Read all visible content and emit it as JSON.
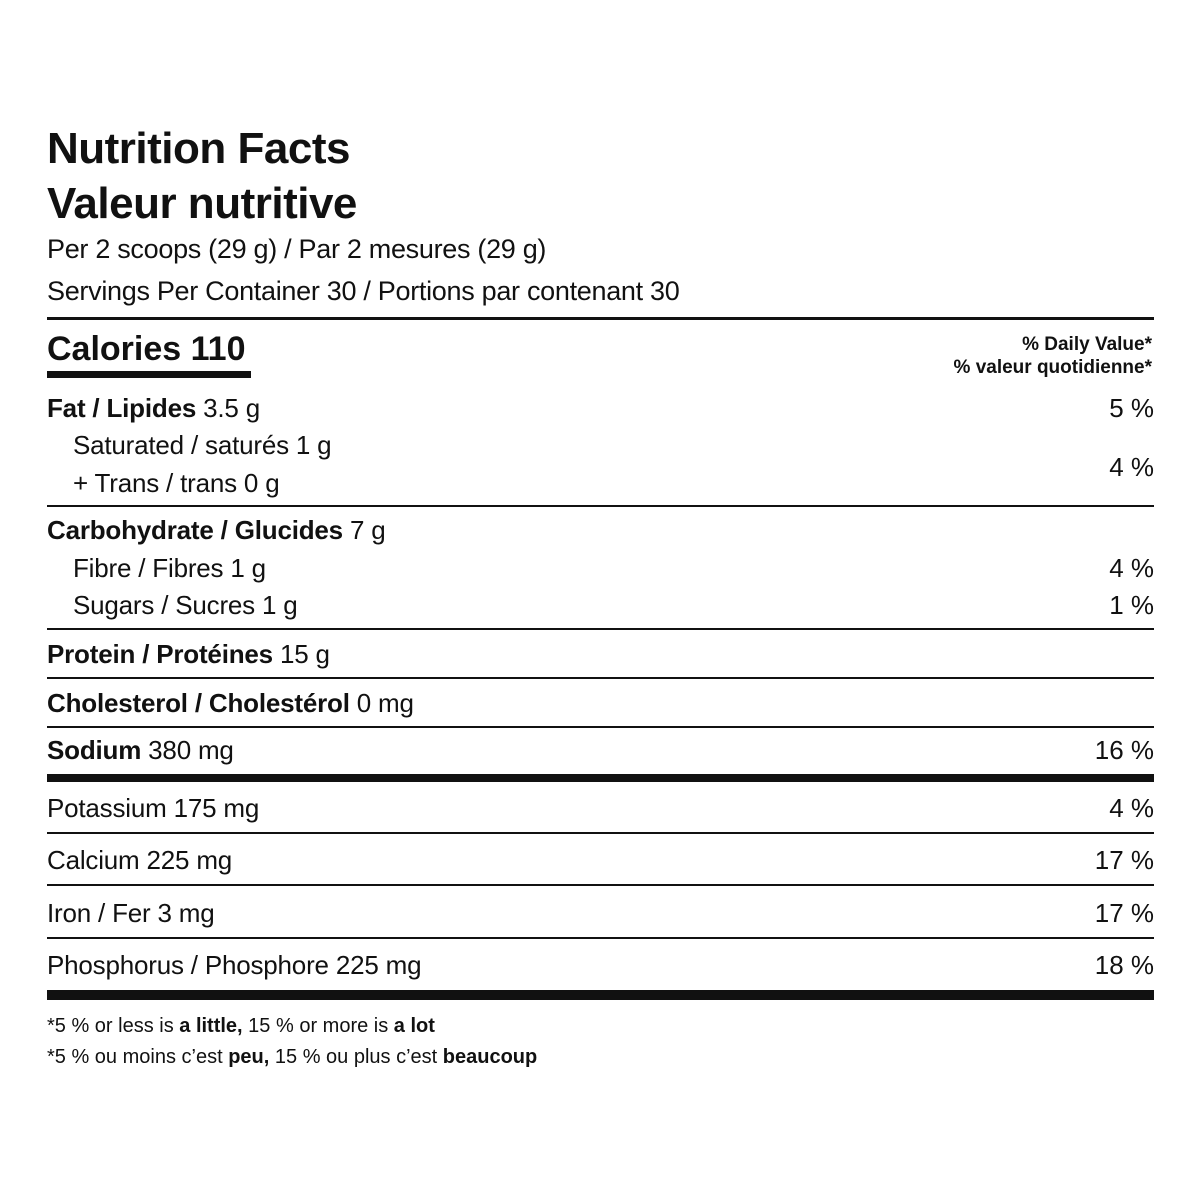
{
  "title_en": "Nutrition Facts",
  "title_fr": "Valeur nutritive",
  "serving": "Per 2 scoops (29 g) / Par 2 mesures (29 g)",
  "servings": "Servings Per Container 30 / Portions par contenant 30",
  "calories": "Calories 110",
  "dv_en": "% Daily Value*",
  "dv_fr": "% valeur quotidienne*",
  "rows": {
    "fat": {
      "label": "Fat / Lipides",
      "amount": "3.5 g",
      "dv": "5 %"
    },
    "saturated": {
      "label": "Saturated / saturés 1 g"
    },
    "trans": {
      "label": "+ Trans / trans 0 g",
      "dv": "4 %"
    },
    "carb": {
      "label": "Carbohydrate / Glucides",
      "amount": "7 g"
    },
    "fibre": {
      "label": "Fibre / Fibres 1 g",
      "dv": "4 %"
    },
    "sugars": {
      "label": "Sugars / Sucres 1 g",
      "dv": "1 %"
    },
    "protein": {
      "label": "Protein / Protéines",
      "amount": "15 g"
    },
    "cholesterol": {
      "label": "Cholesterol / Cholestérol",
      "amount": "0 mg"
    },
    "sodium": {
      "label": "Sodium",
      "amount": "380 mg",
      "dv": "16 %"
    },
    "potassium": {
      "label": "Potassium 175 mg",
      "dv": "4 %"
    },
    "calcium": {
      "label": "Calcium 225 mg",
      "dv": "17 %"
    },
    "iron": {
      "label": "Iron / Fer 3 mg",
      "dv": "17 %"
    },
    "phosphorus": {
      "label": "Phosphorus / Phosphore 225 mg",
      "dv": "18 %"
    }
  },
  "footnote_en": {
    "a": "*5 % or less is ",
    "b": "a little,",
    "c": " 15 % or more is ",
    "d": "a lot"
  },
  "footnote_fr": {
    "a": "*5 % ou moins c’est ",
    "b": "peu,",
    "c": " 15 % ou plus c’est ",
    "d": "beaucoup"
  }
}
